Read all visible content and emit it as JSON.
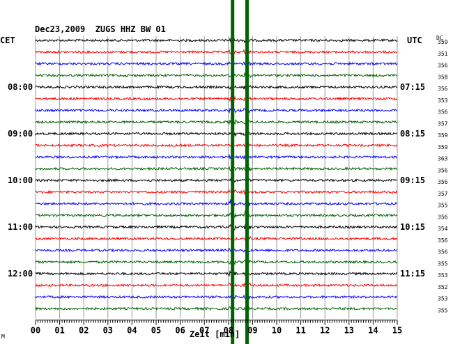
{
  "chart_data": {
    "type": "line",
    "title": "Dec23,2009  ZUGS HHZ BW 01",
    "left_timezone": "CET",
    "right_timezone": "UTC",
    "dc_header": "DC",
    "xlabel": "Zeit [min]",
    "xlim": [
      0,
      15
    ],
    "x_ticks": [
      "00",
      "01",
      "02",
      "03",
      "04",
      "05",
      "06",
      "07",
      "08",
      "09",
      "10",
      "11",
      "12",
      "13",
      "14",
      "15"
    ],
    "rows_per_hour": 4,
    "row_colors": [
      "#000000",
      "#ff0000",
      "#0000ff",
      "#006400"
    ],
    "left_time_labels": [
      {
        "row": 4,
        "text": "08:00"
      },
      {
        "row": 8,
        "text": "09:00"
      },
      {
        "row": 12,
        "text": "10:00"
      },
      {
        "row": 16,
        "text": "11:00"
      },
      {
        "row": 20,
        "text": "12:00"
      }
    ],
    "right_time_labels": [
      {
        "row": 4,
        "text": "07:15"
      },
      {
        "row": 8,
        "text": "08:15"
      },
      {
        "row": 12,
        "text": "09:15"
      },
      {
        "row": 16,
        "text": "10:15"
      },
      {
        "row": 20,
        "text": "11:15"
      }
    ],
    "dc_offsets": [
      "359",
      "351",
      "356",
      "358",
      "356",
      "353",
      "356",
      "357",
      "359",
      "359",
      "363",
      "356",
      "356",
      "357",
      "355",
      "356",
      "354",
      "356",
      "356",
      "355",
      "353",
      "352",
      "353",
      "355"
    ],
    "event_markers": [
      {
        "x_min": 8.17,
        "color": "#006400"
      },
      {
        "x_min": 8.77,
        "color": "#006400"
      }
    ],
    "grid": true,
    "footnote": "M"
  }
}
